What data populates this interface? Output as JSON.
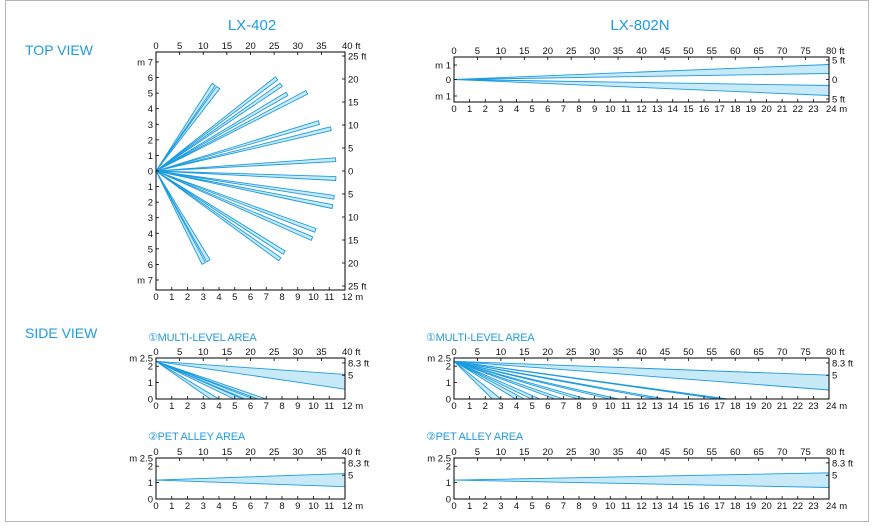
{
  "models": {
    "left": "LX-402",
    "right": "LX-802N"
  },
  "views": {
    "top": "TOP VIEW",
    "side": "SIDE VIEW"
  },
  "areas": {
    "multi": "MULTI-LEVEL AREA",
    "pet": "PET ALLEY AREA",
    "multi_num": "①",
    "pet_num": "②"
  },
  "colors": {
    "beam_fill": "#c8e9f8",
    "beam_stroke": "#1b9be0",
    "axis": "#000000",
    "title": "#1f9be0"
  },
  "panels": {
    "lx402_top": {
      "top_ticks": [
        "0",
        "5",
        "10",
        "15",
        "20",
        "25",
        "30",
        "35",
        "40 ft"
      ],
      "bottom_ticks": [
        "0",
        "1",
        "2",
        "3",
        "4",
        "5",
        "6",
        "7",
        "8",
        "9",
        "10",
        "11",
        "12 m"
      ],
      "left_ticks": [
        "m 7",
        "6",
        "5",
        "4",
        "3",
        "2",
        "1",
        "0",
        "1",
        "2",
        "3",
        "4",
        "5",
        "6",
        "m 7"
      ],
      "right_ticks": [
        "25 ft",
        "20",
        "15",
        "10",
        "5",
        "0",
        "5",
        "10",
        "15",
        "20",
        "25 ft"
      ],
      "beam_angles_deg": [
        57,
        54,
        38,
        35,
        31,
        28,
        17,
        14,
        4,
        -2,
        -8,
        -11,
        -20,
        -23,
        -32,
        -35,
        -59,
        -62
      ],
      "beam_range_m": 12
    },
    "lx802n_top": {
      "top_ticks": [
        "0",
        "5",
        "10",
        "15",
        "20",
        "25",
        "30",
        "35",
        "40",
        "45",
        "50",
        "55",
        "60",
        "65",
        "70",
        "75",
        "80 ft"
      ],
      "bottom_ticks": [
        "0",
        "1",
        "2",
        "3",
        "4",
        "5",
        "6",
        "7",
        "8",
        "9",
        "10",
        "11",
        "12",
        "13",
        "14",
        "15",
        "16",
        "17",
        "18",
        "19",
        "20",
        "21",
        "22",
        "23",
        "24 m"
      ],
      "left_ticks": [
        "m 1",
        "0",
        "m 1"
      ],
      "right_ticks": [
        "5 ft",
        "0",
        "5 ft"
      ],
      "beam_spread_m": [
        1.1,
        -1.1
      ],
      "beam_range_m": 24
    },
    "lx402_side_multi": {
      "top_ticks": [
        "0",
        "5",
        "10",
        "15",
        "20",
        "25",
        "30",
        "35",
        "40 ft"
      ],
      "bottom_ticks": [
        "0",
        "1",
        "2",
        "3",
        "4",
        "5",
        "6",
        "7",
        "8",
        "9",
        "10",
        "11",
        "12 m"
      ],
      "left_ticks": [
        "m 2.5",
        "2",
        "1",
        "0"
      ],
      "right_ticks": [
        "8.3 ft",
        "5"
      ],
      "floor_hits_m": [
        4,
        5.5,
        6.2,
        7
      ],
      "long_beam_end_m": [
        1.5,
        0.6
      ],
      "mount_height_m": 2.3
    },
    "lx802n_side_multi": {
      "top_ticks": [
        "0",
        "5",
        "10",
        "15",
        "20",
        "25",
        "30",
        "35",
        "40",
        "45",
        "50",
        "55",
        "60",
        "65",
        "70",
        "75",
        "80 ft"
      ],
      "bottom_ticks": [
        "0",
        "1",
        "2",
        "3",
        "4",
        "5",
        "6",
        "7",
        "8",
        "9",
        "10",
        "11",
        "12",
        "13",
        "14",
        "15",
        "16",
        "17",
        "18",
        "19",
        "20",
        "21",
        "22",
        "23",
        "24 m"
      ],
      "left_ticks": [
        "m 2.5",
        "2",
        "1",
        "0"
      ],
      "right_ticks": [
        "8.3 ft",
        "5"
      ],
      "floor_hits_m": [
        3,
        4.5,
        5.5,
        7,
        8.5,
        10.5,
        13.5,
        17.5
      ],
      "long_beam_end_m": [
        1.45,
        0.55
      ],
      "mount_height_m": 2.3
    },
    "lx402_side_pet": {
      "top_ticks": [
        "0",
        "5",
        "10",
        "15",
        "20",
        "25",
        "30",
        "35",
        "40 ft"
      ],
      "bottom_ticks": [
        "0",
        "1",
        "2",
        "3",
        "4",
        "5",
        "6",
        "7",
        "8",
        "9",
        "10",
        "11",
        "12 m"
      ],
      "left_ticks": [
        "m 2.5",
        "2",
        "1",
        "0"
      ],
      "right_ticks": [
        "8.3 ft",
        "5"
      ],
      "beam_end_m": [
        1.55,
        0.75
      ],
      "mount_height_m": 1.15
    },
    "lx802n_side_pet": {
      "top_ticks": [
        "0",
        "5",
        "10",
        "15",
        "20",
        "25",
        "30",
        "35",
        "40",
        "45",
        "50",
        "55",
        "60",
        "65",
        "70",
        "75",
        "80 ft"
      ],
      "bottom_ticks": [
        "0",
        "1",
        "2",
        "3",
        "4",
        "5",
        "6",
        "7",
        "8",
        "9",
        "10",
        "11",
        "12",
        "13",
        "14",
        "15",
        "16",
        "17",
        "18",
        "19",
        "20",
        "21",
        "22",
        "23",
        "24 m"
      ],
      "left_ticks": [
        "m 2.5",
        "2",
        "1",
        "0"
      ],
      "right_ticks": [
        "8.3 ft",
        "5"
      ],
      "beam_end_m": [
        1.6,
        0.7
      ],
      "mount_height_m": 1.15
    }
  }
}
